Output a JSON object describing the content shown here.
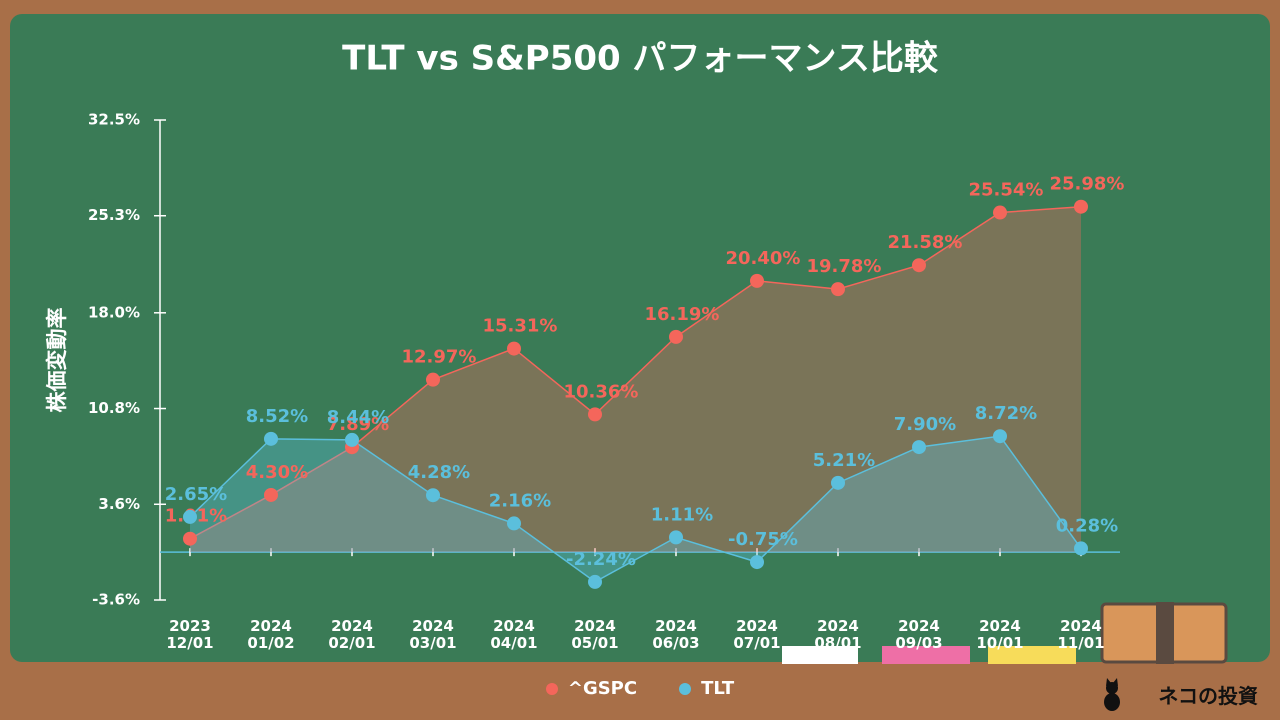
{
  "chart_data": {
    "type": "line",
    "title": "TLT vs S&P500 パフォーマンス比較",
    "y_label": "株価変動率",
    "categories": [
      "2023 12/01",
      "2024 01/02",
      "2024 02/01",
      "2024 03/01",
      "2024 04/01",
      "2024 05/01",
      "2024 06/03",
      "2024 07/01",
      "2024 08/01",
      "2024 09/03",
      "2024 10/01",
      "2024 11/01"
    ],
    "series": [
      {
        "name": "^GSPC",
        "color": "#f4665b",
        "values": [
          1.01,
          4.3,
          7.89,
          12.97,
          15.31,
          10.36,
          16.19,
          20.4,
          19.78,
          21.58,
          25.54,
          25.98
        ],
        "value_labels": [
          "1.01%",
          "4.30%",
          "7.89%",
          "12.97%",
          "15.31%",
          "10.36%",
          "16.19%",
          "20.40%",
          "19.78%",
          "21.58%",
          "25.54%",
          "25.98%"
        ]
      },
      {
        "name": "TLT",
        "color": "#5bbfdc",
        "values": [
          2.65,
          8.52,
          8.44,
          4.28,
          2.16,
          -2.24,
          1.11,
          -0.75,
          5.21,
          7.9,
          8.72,
          0.28
        ],
        "value_labels": [
          "2.65%",
          "8.52%",
          "8.44%",
          "4.28%",
          "2.16%",
          "-2.24%",
          "1.11%",
          "-0.75%",
          "5.21%",
          "7.90%",
          "8.72%",
          "0.28%"
        ]
      }
    ],
    "ylim": [
      -3.6,
      32.5
    ],
    "yticks": [
      {
        "value": -3.6,
        "label": "-3.6%"
      },
      {
        "value": 3.6,
        "label": "3.6%"
      },
      {
        "value": 10.8,
        "label": "10.8%"
      },
      {
        "value": 18.0,
        "label": "18.0%"
      },
      {
        "value": 25.3,
        "label": "25.3%"
      },
      {
        "value": 32.5,
        "label": "32.5%"
      }
    ],
    "legend": "bottom"
  },
  "brand": "ネコの投資"
}
